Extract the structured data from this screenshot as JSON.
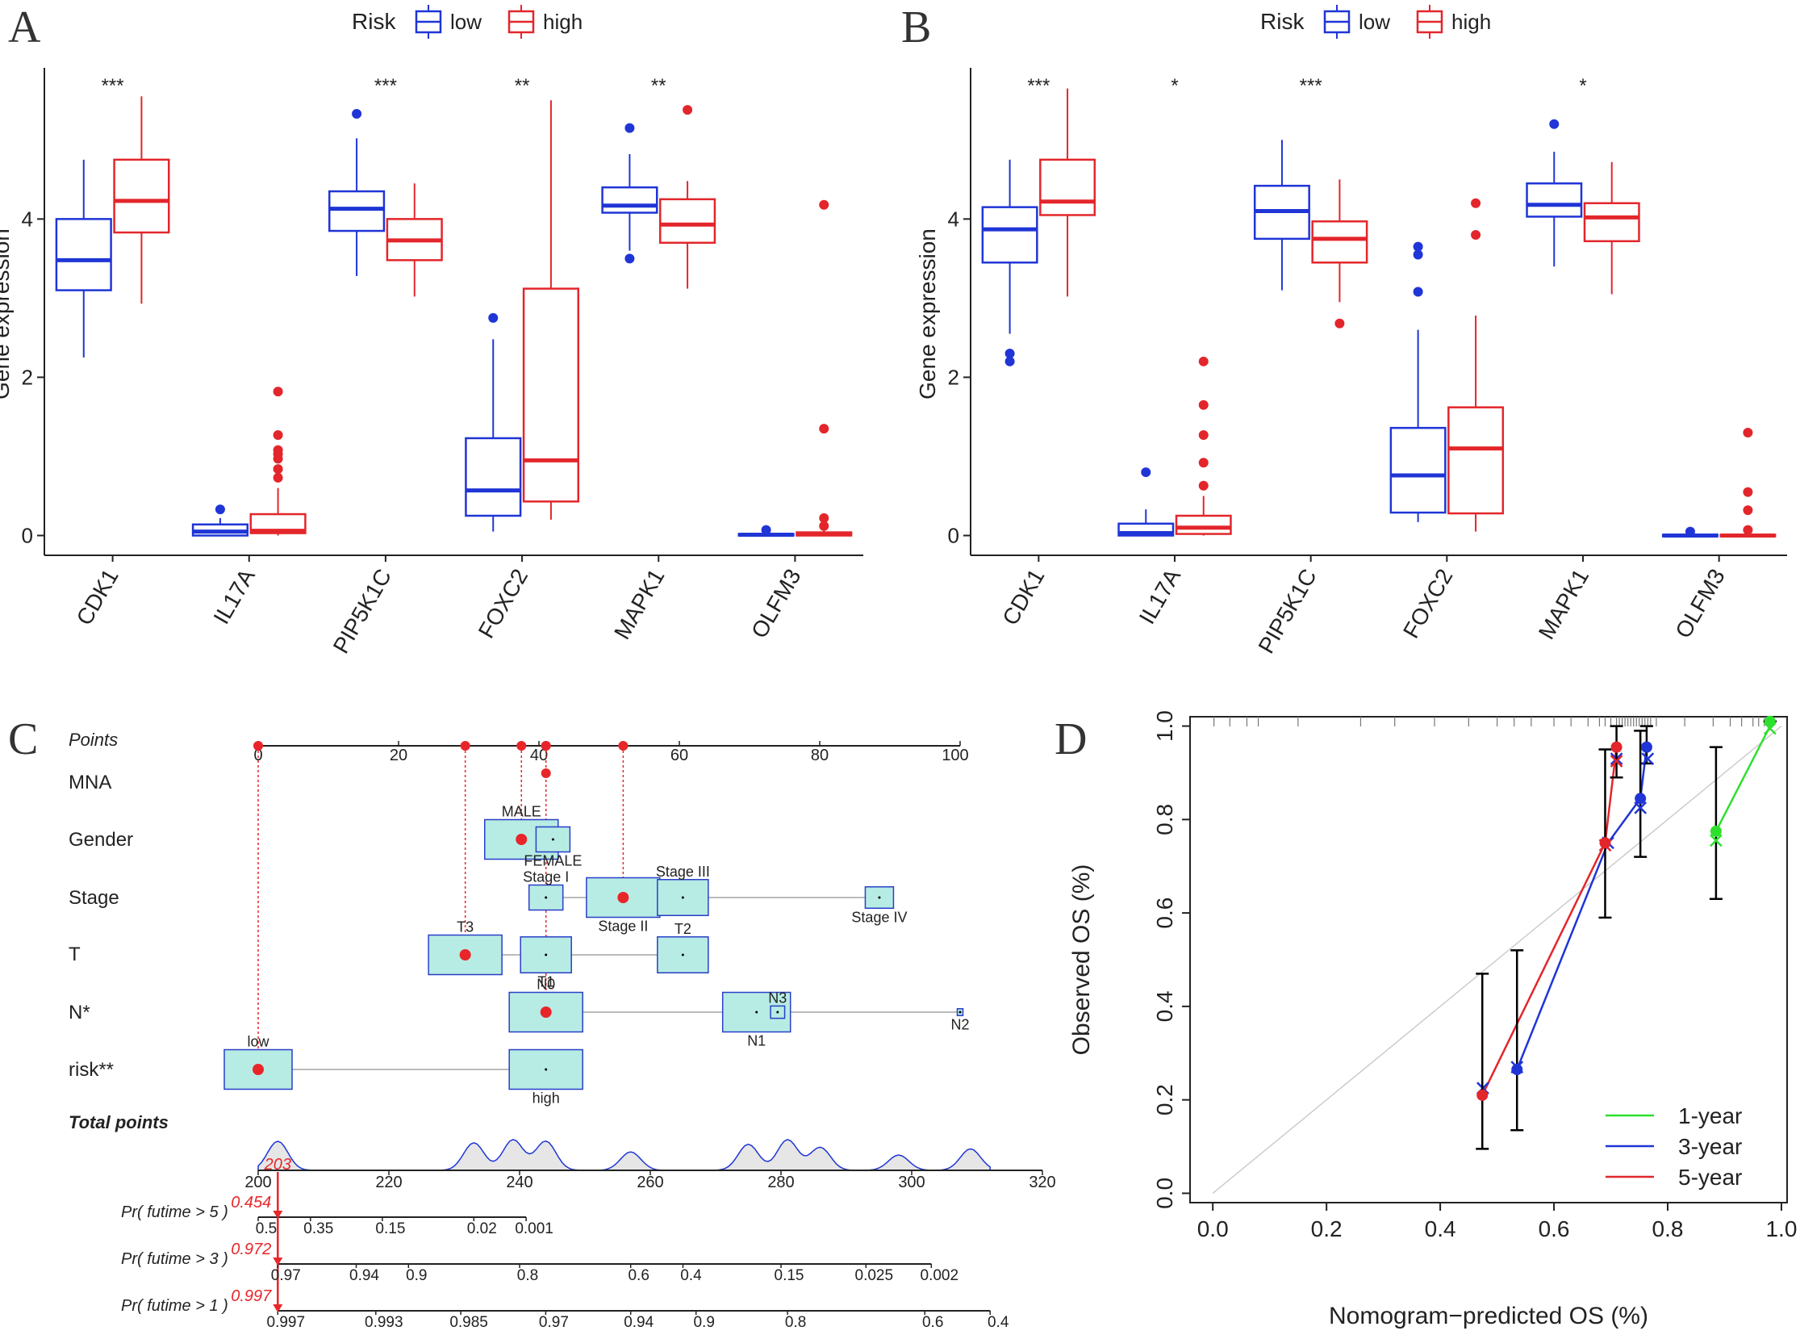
{
  "panel_letters": [
    "A",
    "B",
    "C",
    "D"
  ],
  "colors": {
    "low": "#1f35d6",
    "high": "#e3262b",
    "one_year": "#2ee02e",
    "three_year": "#1f35d6",
    "five_year": "#e3262b",
    "box_fill": "#b7ece4",
    "box_stroke": "#2a3fc8",
    "point_red": "#e8262a",
    "axis": "#222222",
    "grey_line": "#bbbbbb"
  },
  "chart_data": [
    {
      "id": "A",
      "type": "box",
      "ylabel": "Gene expression",
      "legend": {
        "title": "Risk",
        "entries": [
          "low",
          "high"
        ],
        "placement": "top"
      },
      "yticks": [
        0,
        2,
        4
      ],
      "ylim": [
        -0.25,
        5.85
      ],
      "categories": [
        "CDK1",
        "IL17A",
        "PIP5K1C",
        "FOXC2",
        "MAPK1",
        "OLFM3"
      ],
      "significance": [
        "***",
        "",
        "***",
        "**",
        "**",
        ""
      ],
      "series": [
        {
          "name": "low",
          "boxes": [
            {
              "min": 2.25,
              "q1": 3.1,
              "med": 3.48,
              "q3": 4.0,
              "max": 4.75,
              "out": []
            },
            {
              "min": 0.0,
              "q1": 0.0,
              "med": 0.05,
              "q3": 0.14,
              "max": 0.22,
              "out": [
                0.33
              ]
            },
            {
              "min": 3.28,
              "q1": 3.85,
              "med": 4.13,
              "q3": 4.35,
              "max": 5.02,
              "out": [
                5.33
              ]
            },
            {
              "min": 0.05,
              "q1": 0.25,
              "med": 0.57,
              "q3": 1.23,
              "max": 2.48,
              "out": [
                2.75
              ]
            },
            {
              "min": 3.6,
              "q1": 4.08,
              "med": 4.17,
              "q3": 4.4,
              "max": 4.82,
              "out": [
                5.15,
                3.5
              ]
            },
            {
              "min": 0.0,
              "q1": 0.0,
              "med": 0.01,
              "q3": 0.02,
              "max": 0.03,
              "out": [
                0.07
              ]
            }
          ]
        },
        {
          "name": "high",
          "boxes": [
            {
              "min": 2.93,
              "q1": 3.83,
              "med": 4.23,
              "q3": 4.75,
              "max": 5.55,
              "out": []
            },
            {
              "min": 0.0,
              "q1": 0.03,
              "med": 0.06,
              "q3": 0.27,
              "max": 0.6,
              "out": [
                1.82,
                1.27,
                1.08,
                1.03,
                0.97,
                0.84,
                0.73
              ]
            },
            {
              "min": 3.02,
              "q1": 3.48,
              "med": 3.73,
              "q3": 4.0,
              "max": 4.45,
              "out": []
            },
            {
              "min": 0.2,
              "q1": 0.43,
              "med": 0.95,
              "q3": 3.12,
              "max": 5.5,
              "out": []
            },
            {
              "min": 3.12,
              "q1": 3.7,
              "med": 3.93,
              "q3": 4.25,
              "max": 4.48,
              "out": [
                5.38
              ]
            },
            {
              "min": 0.0,
              "q1": 0.0,
              "med": 0.02,
              "q3": 0.04,
              "max": 0.06,
              "out": [
                4.18,
                1.35,
                0.22,
                0.12
              ]
            }
          ]
        }
      ]
    },
    {
      "id": "B",
      "type": "box",
      "ylabel": "Gene expression",
      "legend": {
        "title": "Risk",
        "entries": [
          "low",
          "high"
        ],
        "placement": "top"
      },
      "yticks": [
        0,
        2,
        4
      ],
      "ylim": [
        -0.25,
        5.85
      ],
      "categories": [
        "CDK1",
        "IL17A",
        "PIP5K1C",
        "FOXC2",
        "MAPK1",
        "OLFM3"
      ],
      "significance": [
        "***",
        "*",
        "***",
        "",
        "*",
        ""
      ],
      "series": [
        {
          "name": "low",
          "boxes": [
            {
              "min": 2.55,
              "q1": 3.45,
              "med": 3.87,
              "q3": 4.15,
              "max": 4.75,
              "out": [
                2.3,
                2.2
              ]
            },
            {
              "min": 0.0,
              "q1": 0.0,
              "med": 0.03,
              "q3": 0.15,
              "max": 0.33,
              "out": [
                0.8
              ]
            },
            {
              "min": 3.1,
              "q1": 3.75,
              "med": 4.1,
              "q3": 4.42,
              "max": 5.0,
              "out": []
            },
            {
              "min": 0.17,
              "q1": 0.29,
              "med": 0.76,
              "q3": 1.36,
              "max": 2.6,
              "out": [
                3.65,
                3.55,
                3.08
              ]
            },
            {
              "min": 3.4,
              "q1": 4.03,
              "med": 4.18,
              "q3": 4.45,
              "max": 4.85,
              "out": [
                5.2
              ]
            },
            {
              "min": 0.0,
              "q1": 0.0,
              "med": 0.0,
              "q3": 0.01,
              "max": 0.02,
              "out": [
                0.05
              ]
            }
          ]
        },
        {
          "name": "high",
          "boxes": [
            {
              "min": 3.02,
              "q1": 4.05,
              "med": 4.22,
              "q3": 4.75,
              "max": 5.65,
              "out": []
            },
            {
              "min": 0.0,
              "q1": 0.02,
              "med": 0.1,
              "q3": 0.25,
              "max": 0.5,
              "out": [
                2.2,
                1.65,
                1.27,
                0.92,
                0.63
              ]
            },
            {
              "min": 2.95,
              "q1": 3.45,
              "med": 3.75,
              "q3": 3.97,
              "max": 4.5,
              "out": [
                2.68
              ]
            },
            {
              "min": 0.05,
              "q1": 0.28,
              "med": 1.1,
              "q3": 1.62,
              "max": 2.78,
              "out": [
                4.2,
                3.8
              ]
            },
            {
              "min": 3.05,
              "q1": 3.72,
              "med": 4.02,
              "q3": 4.2,
              "max": 4.72,
              "out": []
            },
            {
              "min": 0.0,
              "q1": 0.0,
              "med": 0.0,
              "q3": 0.01,
              "max": 0.03,
              "out": [
                1.3,
                0.55,
                0.32,
                0.07
              ]
            }
          ]
        }
      ]
    },
    {
      "id": "C",
      "type": "nomogram",
      "points_label": "Points",
      "points_ticks": [
        0,
        20,
        40,
        60,
        80,
        100
      ],
      "patient_points": [
        0,
        29.5,
        37.5,
        41,
        41,
        52
      ],
      "variables": [
        {
          "label": "MNA",
          "range": [
            41,
            41
          ],
          "levels": []
        },
        {
          "label": "Gender",
          "range": [
            37.5,
            42
          ],
          "levels": [
            {
              "name": "MALE",
              "pts": 37.5,
              "size": 1.3,
              "selected": true,
              "label_pos": "above"
            },
            {
              "name": "FEMALE",
              "pts": 42,
              "size": 0.6,
              "selected": false,
              "label_pos": "below"
            }
          ]
        },
        {
          "label": "Stage",
          "range": [
            41,
            88
          ],
          "levels": [
            {
              "name": "Stage I",
              "pts": 41,
              "size": 0.6,
              "selected": false,
              "label_pos": "above"
            },
            {
              "name": "Stage II",
              "pts": 52,
              "size": 1.3,
              "selected": true,
              "label_pos": "below"
            },
            {
              "name": "Stage III",
              "pts": 60.5,
              "size": 0.9,
              "selected": false,
              "label_pos": "above"
            },
            {
              "name": "Stage IV",
              "pts": 88.5,
              "size": 0.5,
              "selected": false,
              "label_pos": "below"
            }
          ]
        },
        {
          "label": "T",
          "range": [
            29.5,
            60.5
          ],
          "levels": [
            {
              "name": "T3",
              "pts": 29.5,
              "size": 1.3,
              "selected": true,
              "label_pos": "above"
            },
            {
              "name": "T1",
              "pts": 41,
              "size": 0.9,
              "selected": false,
              "label_pos": "below"
            },
            {
              "name": "T2",
              "pts": 60.5,
              "size": 0.9,
              "selected": false,
              "label_pos": "above"
            }
          ]
        },
        {
          "label": "N*",
          "range": [
            41,
            100
          ],
          "levels": [
            {
              "name": "N0",
              "pts": 41,
              "size": 1.3,
              "selected": true,
              "label_pos": "above"
            },
            {
              "name": "N1",
              "pts": 71,
              "size": 1.2,
              "selected": false,
              "label_pos": "below"
            },
            {
              "name": "N3",
              "pts": 74,
              "size": 0.25,
              "selected": false,
              "label_pos": "above"
            },
            {
              "name": "N2",
              "pts": 100,
              "size": 0.1,
              "selected": false,
              "label_pos": "below"
            }
          ]
        },
        {
          "label": "risk**",
          "range": [
            0,
            41
          ],
          "levels": [
            {
              "name": "low",
              "pts": 0,
              "size": 1.2,
              "selected": true,
              "label_pos": "above"
            },
            {
              "name": "high",
              "pts": 41,
              "size": 1.3,
              "selected": false,
              "label_pos": "below"
            }
          ]
        }
      ],
      "total_label": "Total points",
      "total_ticks": [
        200,
        220,
        240,
        260,
        280,
        300,
        320
      ],
      "total_value": "203",
      "density_peaks": [
        [
          203,
          0.95
        ],
        [
          233,
          0.9
        ],
        [
          239,
          1.0
        ],
        [
          244,
          0.95
        ],
        [
          257,
          0.6
        ],
        [
          275,
          0.85
        ],
        [
          281,
          1.0
        ],
        [
          286,
          0.75
        ],
        [
          298,
          0.5
        ],
        [
          309,
          0.7
        ]
      ],
      "prob_axes": [
        {
          "label": "Pr( futime > 5 )",
          "value": "0.454",
          "ticks": [
            "0.5",
            "0.35",
            "0.15",
            "0.02",
            "0.001"
          ],
          "tick_points": [
            200,
            208,
            219,
            233,
            241
          ]
        },
        {
          "label": "Pr( futime > 3 )",
          "value": "0.972",
          "ticks": [
            "0.97",
            "0.94",
            "0.9",
            "0.8",
            "0.6",
            "0.4",
            "0.15",
            "0.025",
            "0.002"
          ],
          "tick_points": [
            203,
            215,
            223,
            240,
            257,
            265,
            280,
            293,
            303
          ]
        },
        {
          "label": "Pr( futime > 1 )",
          "value": "0.997",
          "ticks": [
            "0.997",
            "0.993",
            "0.985",
            "0.97",
            "0.94",
            "0.9",
            "0.8",
            "0.6",
            "0.4"
          ],
          "tick_points": [
            203,
            218,
            231,
            244,
            257,
            267,
            281,
            302,
            312
          ]
        }
      ]
    },
    {
      "id": "D",
      "type": "calibration",
      "xlabel": "Nomogram−predicted OS (%)",
      "ylabel": "Observed OS (%)",
      "xticks": [
        "0.0",
        "0.2",
        "0.4",
        "0.6",
        "0.8",
        "1.0"
      ],
      "yticks": [
        "0.0",
        "0.2",
        "0.4",
        "0.6",
        "0.8",
        "1.0"
      ],
      "xlim": [
        -0.04,
        1.01
      ],
      "ylim": [
        -0.02,
        1.02
      ],
      "legend": {
        "placement": "bottom-right",
        "entries": [
          "1-year",
          "3-year",
          "5-year"
        ]
      },
      "rug": [
        0.002,
        0.03,
        0.06,
        0.08,
        0.15,
        0.26,
        0.32,
        0.39,
        0.45,
        0.5,
        0.53,
        0.56,
        0.6,
        0.63,
        0.66,
        0.68,
        0.69,
        0.7,
        0.71,
        0.715,
        0.72,
        0.725,
        0.73,
        0.735,
        0.74,
        0.745,
        0.75,
        0.755,
        0.76,
        0.765,
        0.77,
        0.78,
        0.83,
        0.88,
        0.91,
        0.93,
        0.95,
        0.96,
        0.97,
        0.975,
        0.98,
        0.985
      ],
      "series": [
        {
          "name": "1-year",
          "points": [
            [
              0.885,
              0.775,
              0.63,
              0.955
            ],
            [
              0.98,
              1.01,
              1.01,
              1.01
            ]
          ],
          "xs": [
            [
              0.885,
              0.755
            ],
            [
              0.98,
              0.995
            ]
          ]
        },
        {
          "name": "3-year",
          "points": [
            [
              0.535,
              0.265,
              0.135,
              0.52
            ],
            [
              0.752,
              0.845,
              0.72,
              0.99
            ],
            [
              0.763,
              0.955,
              0.92,
              1.0
            ]
          ],
          "xs": [
            [
              0.475,
              0.225
            ],
            [
              0.535,
              0.27
            ],
            [
              0.695,
              0.75
            ],
            [
              0.71,
              0.93
            ],
            [
              0.752,
              0.825
            ],
            [
              0.765,
              0.93
            ]
          ]
        },
        {
          "name": "5-year",
          "points": [
            [
              0.474,
              0.21,
              0.095,
              0.47
            ],
            [
              0.69,
              0.75,
              0.59,
              0.95
            ],
            [
              0.71,
              0.955,
              0.89,
              1.0
            ]
          ],
          "xs": [
            [
              0.69,
              0.745
            ],
            [
              0.71,
              0.925
            ]
          ]
        }
      ],
      "lines": {
        "1-year": [
          [
            0.885,
            0.775
          ],
          [
            0.98,
            1.0
          ]
        ],
        "3-year": [
          [
            0.535,
            0.265
          ],
          [
            0.695,
            0.75
          ],
          [
            0.752,
            0.845
          ],
          [
            0.763,
            0.955
          ]
        ],
        "5-year": [
          [
            0.474,
            0.21
          ],
          [
            0.69,
            0.75
          ],
          [
            0.71,
            0.955
          ]
        ]
      }
    }
  ]
}
